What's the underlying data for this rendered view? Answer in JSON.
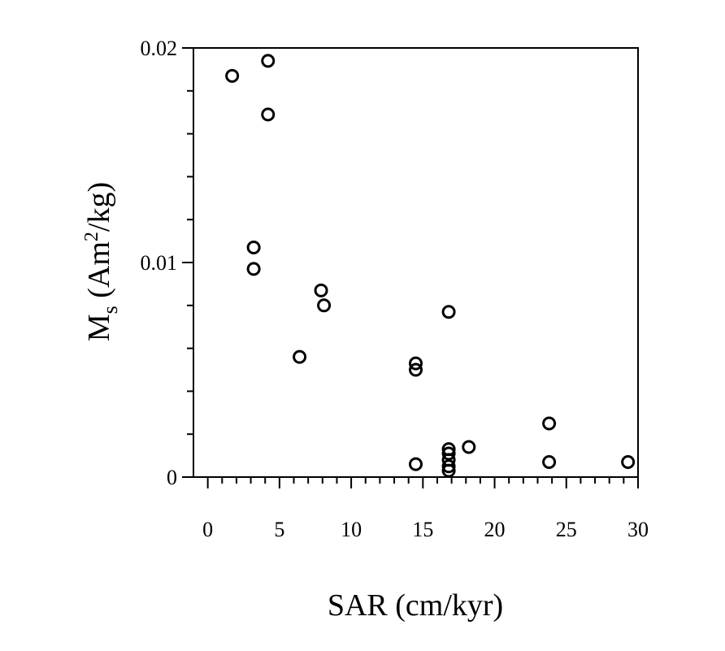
{
  "chart_data": {
    "type": "scatter",
    "title": "",
    "xlabel": "SAR (cm/kyr)",
    "ylabel": {
      "base": "M",
      "subscript": "s",
      "text_before_sup": " (Am",
      "superscript": "2",
      "text_after_sup": "/kg)"
    },
    "xlim": [
      -1,
      30
    ],
    "ylim": [
      0,
      0.02
    ],
    "x_ticks": [
      0,
      5,
      10,
      15,
      20,
      25,
      30
    ],
    "x_tick_labels": [
      "0",
      "5",
      "10",
      "15",
      "20",
      "25",
      "30"
    ],
    "y_ticks": [
      0,
      0.01,
      0.02
    ],
    "y_tick_labels": [
      "0",
      "0.01",
      "0.02"
    ],
    "marker": "open-circle",
    "grid": false,
    "points": [
      {
        "x": 1.7,
        "y": 0.0187
      },
      {
        "x": 4.2,
        "y": 0.0194
      },
      {
        "x": 4.2,
        "y": 0.0169
      },
      {
        "x": 3.2,
        "y": 0.0107
      },
      {
        "x": 3.2,
        "y": 0.0097
      },
      {
        "x": 7.9,
        "y": 0.0087
      },
      {
        "x": 8.1,
        "y": 0.008
      },
      {
        "x": 6.4,
        "y": 0.0056
      },
      {
        "x": 14.5,
        "y": 0.0053
      },
      {
        "x": 14.5,
        "y": 0.005
      },
      {
        "x": 16.8,
        "y": 0.0077
      },
      {
        "x": 14.5,
        "y": 0.0006
      },
      {
        "x": 16.8,
        "y": 0.0013
      },
      {
        "x": 16.8,
        "y": 0.0011
      },
      {
        "x": 16.8,
        "y": 0.0008
      },
      {
        "x": 16.8,
        "y": 0.0005
      },
      {
        "x": 16.8,
        "y": 0.0003
      },
      {
        "x": 18.2,
        "y": 0.0014
      },
      {
        "x": 23.8,
        "y": 0.0025
      },
      {
        "x": 23.8,
        "y": 0.0007
      },
      {
        "x": 29.3,
        "y": 0.0007
      }
    ]
  }
}
